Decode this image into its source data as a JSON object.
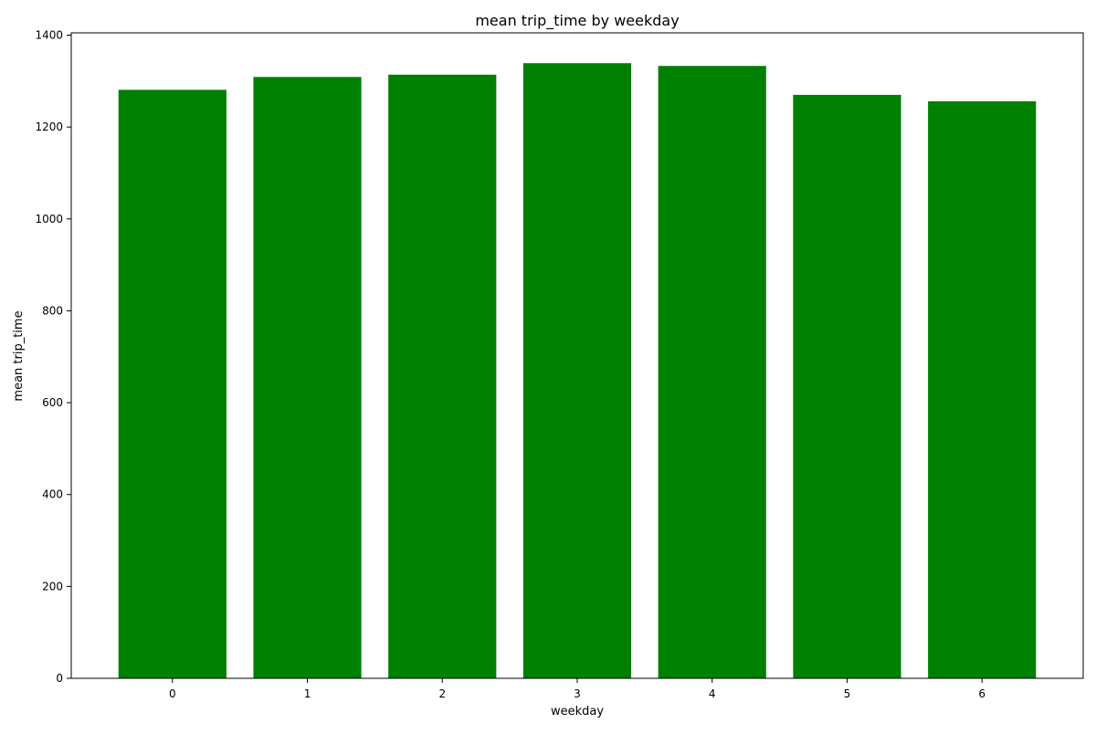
{
  "chart_data": {
    "type": "bar",
    "title": "mean trip_time by weekday",
    "xlabel": "weekday",
    "ylabel": "mean trip_time",
    "categories": [
      "0",
      "1",
      "2",
      "3",
      "4",
      "5",
      "6"
    ],
    "values": [
      1281,
      1309,
      1314,
      1339,
      1333,
      1270,
      1256
    ],
    "bar_color": "#008000",
    "ylim": [
      0,
      1405
    ],
    "yticks": [
      0,
      200,
      400,
      600,
      800,
      1000,
      1200,
      1400
    ],
    "grid": false,
    "legend": "none"
  }
}
